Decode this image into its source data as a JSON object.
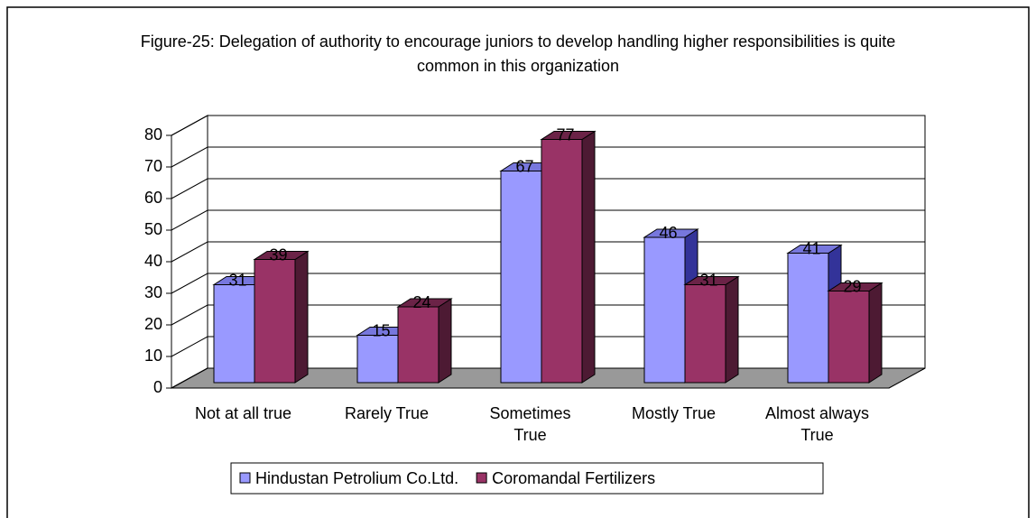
{
  "chart_data": {
    "type": "bar3d",
    "title": "Figure-25: Delegation of authority to encourage juniors to develop handling higher responsibilities is quite common in this organization",
    "categories": [
      "Not at all true",
      "Rarely True",
      "Sometimes True",
      "Mostly True",
      "Almost always True"
    ],
    "series": [
      {
        "name": "Hindustan Petrolium Co.Ltd.",
        "color": "#9999ff",
        "values": [
          31,
          15,
          67,
          46,
          41
        ]
      },
      {
        "name": "Coromandal Fertilizers",
        "color": "#993366",
        "values": [
          39,
          24,
          77,
          31,
          29
        ]
      }
    ],
    "ylim": [
      0,
      80
    ],
    "yticks": [
      0,
      10,
      20,
      30,
      40,
      50,
      60,
      70,
      80
    ],
    "grid": true,
    "legend": "bottom"
  }
}
